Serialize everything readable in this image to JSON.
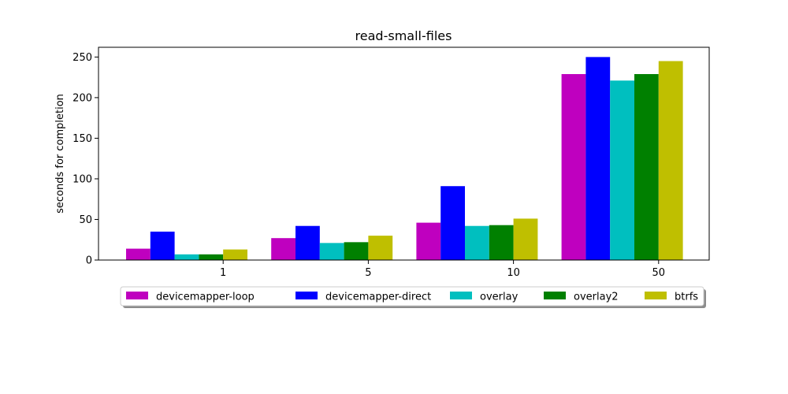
{
  "chart_data": {
    "type": "bar",
    "title": "read-small-files",
    "xlabel": "",
    "ylabel": "seconds for completion",
    "categories": [
      "1",
      "5",
      "10",
      "50"
    ],
    "series": [
      {
        "name": "devicemapper-loop",
        "color": "#bf00bf",
        "values": [
          14,
          27,
          46,
          229
        ]
      },
      {
        "name": "devicemapper-direct",
        "color": "#0000ff",
        "values": [
          35,
          42,
          91,
          250
        ]
      },
      {
        "name": "overlay",
        "color": "#00bfbf",
        "values": [
          7,
          21,
          42,
          221
        ]
      },
      {
        "name": "overlay2",
        "color": "#008000",
        "values": [
          7,
          22,
          43,
          229
        ]
      },
      {
        "name": "btrfs",
        "color": "#bfbf00",
        "values": [
          13,
          30,
          51,
          245
        ]
      }
    ],
    "ylim": [
      0,
      262
    ],
    "yticks": [
      0,
      50,
      100,
      150,
      200,
      250
    ],
    "grid": false,
    "legend_position": "bottom-center"
  }
}
